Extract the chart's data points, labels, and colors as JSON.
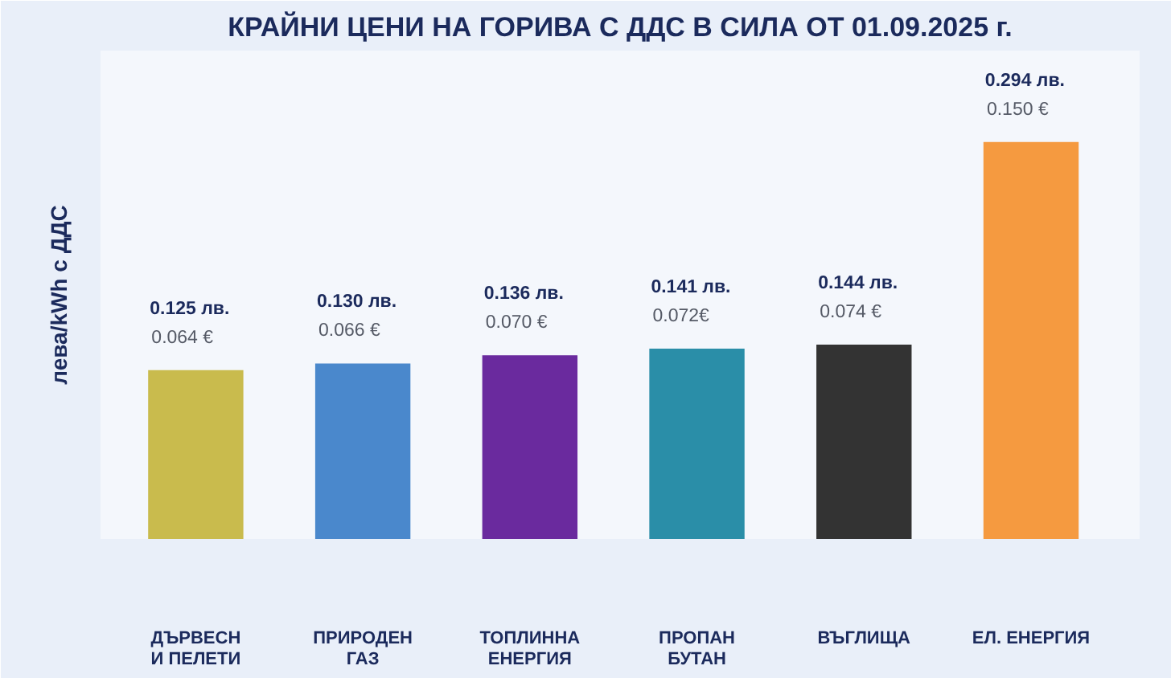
{
  "chart_data": {
    "type": "bar",
    "title": "КРАЙНИ ЦЕНИ НА ГОРИВА С ДДС В СИЛА ОТ 01.09.2025 г.",
    "ylabel": "лева/kWh с ДДС",
    "categories": [
      "ДЪРВЕСН\nИ ПЕЛЕТИ",
      "ПРИРОДЕН\nГАЗ",
      "ТОПЛИННА\nЕНЕРГИЯ",
      "ПРОПАН\nБУТАН",
      "ВЪГЛИЩА",
      "ЕЛ. ЕНЕРГИЯ"
    ],
    "values": [
      0.125,
      0.13,
      0.136,
      0.141,
      0.144,
      0.294
    ],
    "colors": [
      "#c9bb4d",
      "#4a88cc",
      "#6a2a9e",
      "#2a8ea8",
      "#333333",
      "#f59a40"
    ],
    "value_labels": [
      "0.125 лв.\n0.064 €",
      "0.130 лв.\n0.066 €",
      "0.136 лв.\n0.070 €",
      "0.141 лв.\n0.072€",
      "0.144 лв.\n0.074 €",
      "0.294 лв.\n0.150 €"
    ],
    "tick_labels": "x"
  }
}
